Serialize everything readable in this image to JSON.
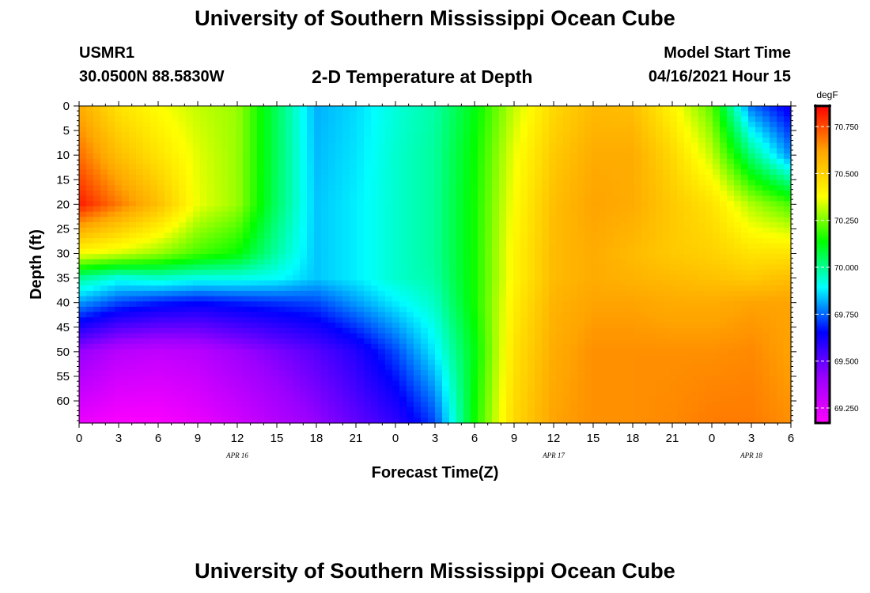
{
  "header": {
    "title": "University of Southern Mississippi Ocean Cube",
    "station_id": "USMR1",
    "station_location": "30.0500N  88.5830W",
    "plot_title": "2-D Temperature at Depth",
    "model_start_label": "Model Start Time",
    "model_start_value": "04/16/2021 Hour 15"
  },
  "footer": {
    "title": "University of Southern Mississippi Ocean Cube"
  },
  "colors": {
    "background": "#ffffff",
    "text": "#000000",
    "colormap": [
      "#ff00ff",
      "#9b00ff",
      "#0000ff",
      "#00ffff",
      "#00ff00",
      "#ffff00",
      "#ffa500",
      "#ff0000"
    ]
  },
  "chart_data": {
    "type": "heatmap",
    "xlabel": "Forecast Time(Z)",
    "ylabel": "Depth (ft)",
    "x_tick_labels": [
      "0",
      "3",
      "6",
      "9",
      "12",
      "15",
      "18",
      "21",
      "0",
      "3",
      "6",
      "9",
      "12",
      "15",
      "18",
      "21",
      "0",
      "3",
      "6"
    ],
    "x_hours": [
      0,
      3,
      6,
      9,
      12,
      15,
      18,
      21,
      24,
      27,
      30,
      33,
      36,
      39,
      42,
      45,
      48,
      51,
      54
    ],
    "date_labels": [
      {
        "label": "APR 16",
        "hour": 12
      },
      {
        "label": "APR 17",
        "hour": 36
      },
      {
        "label": "APR 18",
        "hour": 51
      }
    ],
    "y_ticks": [
      0,
      5,
      10,
      15,
      20,
      25,
      30,
      35,
      40,
      45,
      50,
      55,
      60
    ],
    "xlim": [
      0,
      54
    ],
    "ylim": [
      0,
      64.5
    ],
    "y_inverted": true,
    "colorbar": {
      "unit": "degF",
      "ticks": [
        "70.750",
        "70.500",
        "70.250",
        "70.000",
        "69.750",
        "69.500",
        "69.250"
      ],
      "tick_values": [
        70.75,
        70.5,
        70.25,
        70.0,
        69.75,
        69.5,
        69.25
      ],
      "range": [
        69.17,
        70.86
      ]
    },
    "grid_hours": [
      0,
      3,
      6,
      9,
      12,
      15,
      18,
      21,
      24,
      27,
      30,
      33,
      36,
      39,
      42,
      45,
      48,
      51,
      54
    ],
    "grid_depths": [
      0,
      10,
      20,
      30,
      35,
      40,
      50,
      64.5
    ],
    "values": [
      [
        70.6,
        70.45,
        70.38,
        70.32,
        70.28,
        70.05,
        69.82,
        69.86,
        69.93,
        69.98,
        70.12,
        70.32,
        70.48,
        70.56,
        70.55,
        70.4,
        70.22,
        69.76,
        69.62
      ],
      [
        70.7,
        70.55,
        70.45,
        70.35,
        70.28,
        70.05,
        69.83,
        69.87,
        69.94,
        69.99,
        70.14,
        70.36,
        70.52,
        70.6,
        70.6,
        70.48,
        70.32,
        70.02,
        69.78
      ],
      [
        70.82,
        70.68,
        70.55,
        70.36,
        70.28,
        70.04,
        69.84,
        69.88,
        69.94,
        69.99,
        70.15,
        70.38,
        70.55,
        70.62,
        70.6,
        70.52,
        70.45,
        70.3,
        70.2
      ],
      [
        70.38,
        70.34,
        70.28,
        70.2,
        70.14,
        69.98,
        69.84,
        69.88,
        69.94,
        69.99,
        70.15,
        70.4,
        70.56,
        70.6,
        70.56,
        70.52,
        70.5,
        70.45,
        70.45
      ],
      [
        70.0,
        69.92,
        69.95,
        69.92,
        69.92,
        69.9,
        69.84,
        69.88,
        69.94,
        69.98,
        70.15,
        70.4,
        70.56,
        70.6,
        70.58,
        70.56,
        70.54,
        70.52,
        70.55
      ],
      [
        69.8,
        69.72,
        69.68,
        69.66,
        69.68,
        69.7,
        69.72,
        69.8,
        69.88,
        69.95,
        70.15,
        70.42,
        70.58,
        70.62,
        70.62,
        70.6,
        70.6,
        70.62,
        70.62
      ],
      [
        69.42,
        69.34,
        69.32,
        69.34,
        69.4,
        69.46,
        69.52,
        69.6,
        69.72,
        69.88,
        70.12,
        70.45,
        70.6,
        70.65,
        70.65,
        70.65,
        70.65,
        70.66,
        70.62
      ],
      [
        69.22,
        69.18,
        69.18,
        69.22,
        69.28,
        69.35,
        69.42,
        69.5,
        69.58,
        69.72,
        70.15,
        70.48,
        70.62,
        70.65,
        70.65,
        70.66,
        70.68,
        70.68,
        70.65
      ]
    ]
  }
}
